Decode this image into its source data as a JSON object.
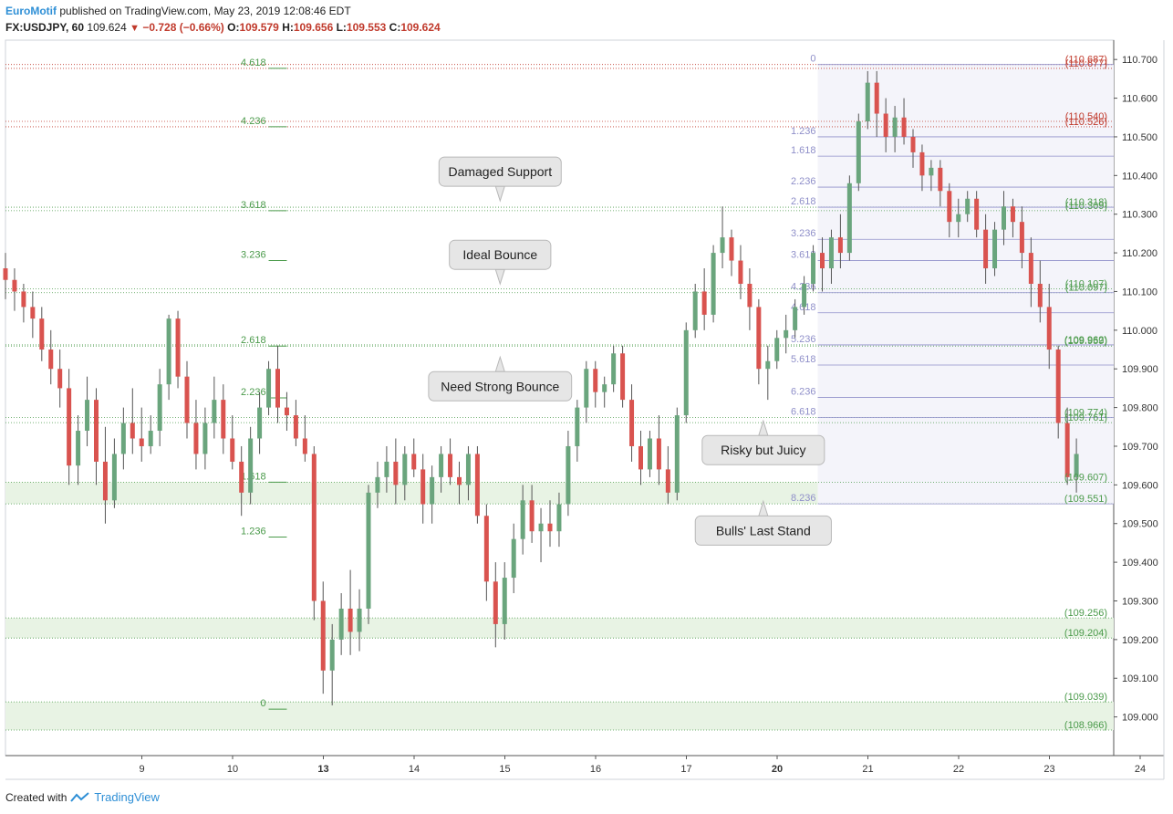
{
  "header": {
    "publisher": "EuroMotif",
    "published_text": "published on TradingView.com, May 23, 2019 12:08:46 EDT",
    "symbol": "FX:USDJPY, 60",
    "last": "109.624",
    "change": "−0.728 (−0.66%)",
    "o_label": "O:",
    "o_value": "109.579",
    "h_label": "H:",
    "h_value": "109.656",
    "l_label": "L:",
    "l_value": "109.553",
    "c_label": "C:",
    "c_value": "109.624"
  },
  "footer": {
    "created_with": "Created with",
    "brand": "TradingView"
  },
  "colors": {
    "up": "#6aa57d",
    "down": "#d9534f",
    "fib_left": "#4a9a4a",
    "fib_right": "#8f8fc9",
    "zone": "#e8f3e4",
    "res": "#c0392b",
    "sup": "#4a9a4a"
  },
  "chart_data": {
    "type": "candlestick",
    "symbol": "FX:USDJPY",
    "interval": "60",
    "ylim": [
      108.9,
      110.75
    ],
    "y_ticks": [
      "110.700",
      "110.600",
      "110.500",
      "110.400",
      "110.300",
      "110.200",
      "110.100",
      "110.000",
      "109.900",
      "109.800",
      "109.700",
      "109.600",
      "109.500",
      "109.400",
      "109.300",
      "109.200",
      "109.100",
      "109.000"
    ],
    "x_ticks": [
      {
        "label": "9",
        "day": 1,
        "bold": false
      },
      {
        "label": "10",
        "day": 2,
        "bold": false
      },
      {
        "label": "13",
        "day": 3,
        "bold": true
      },
      {
        "label": "14",
        "day": 4,
        "bold": false
      },
      {
        "label": "15",
        "day": 5,
        "bold": false
      },
      {
        "label": "16",
        "day": 6,
        "bold": false
      },
      {
        "label": "17",
        "day": 7,
        "bold": false
      },
      {
        "label": "20",
        "day": 8,
        "bold": true
      },
      {
        "label": "21",
        "day": 9,
        "bold": false
      },
      {
        "label": "22",
        "day": 10,
        "bold": false
      },
      {
        "label": "23",
        "day": 11,
        "bold": false
      },
      {
        "label": "24",
        "day": 12,
        "bold": false
      }
    ],
    "price_labels": [
      {
        "text": "(110.687)",
        "value": 110.687,
        "kind": "res"
      },
      {
        "text": "(110.677)",
        "value": 110.677,
        "kind": "res"
      },
      {
        "text": "(110.540)",
        "value": 110.54,
        "kind": "res"
      },
      {
        "text": "(110.526)",
        "value": 110.526,
        "kind": "res"
      },
      {
        "text": "(110.318)",
        "value": 110.318,
        "kind": "sup"
      },
      {
        "text": "(110.309)",
        "value": 110.309,
        "kind": "sup"
      },
      {
        "text": "(110.107)",
        "value": 110.107,
        "kind": "sup"
      },
      {
        "text": "(110.097)",
        "value": 110.097,
        "kind": "sup"
      },
      {
        "text": "(109.962)",
        "value": 109.962,
        "kind": "sup"
      },
      {
        "text": "(109.959)",
        "value": 109.959,
        "kind": "sup"
      },
      {
        "text": "(109.774)",
        "value": 109.774,
        "kind": "sup"
      },
      {
        "text": "(109.761)",
        "value": 109.761,
        "kind": "sup"
      },
      {
        "text": "(109.607)",
        "value": 109.607,
        "kind": "sup"
      },
      {
        "text": "(109.551)",
        "value": 109.551,
        "kind": "sup"
      },
      {
        "text": "(109.256)",
        "value": 109.256,
        "kind": "sup"
      },
      {
        "text": "(109.204)",
        "value": 109.204,
        "kind": "sup"
      },
      {
        "text": "(109.039)",
        "value": 109.039,
        "kind": "sup"
      },
      {
        "text": "(108.966)",
        "value": 108.966,
        "kind": "sup"
      }
    ],
    "zones": [
      [
        109.551,
        109.607
      ],
      [
        109.204,
        109.256
      ],
      [
        108.966,
        109.039
      ]
    ],
    "fib_left": [
      {
        "label": "4.618",
        "value": 110.677
      },
      {
        "label": "4.236",
        "value": 110.526
      },
      {
        "label": "3.618",
        "value": 110.309
      },
      {
        "label": "3.236",
        "value": 110.18
      },
      {
        "label": "2.618",
        "value": 109.959
      },
      {
        "label": "2.236",
        "value": 109.825
      },
      {
        "label": "1.618",
        "value": 109.607
      },
      {
        "label": "1.236",
        "value": 109.465
      },
      {
        "label": "0",
        "value": 109.02
      }
    ],
    "fib_right": [
      {
        "label": "0",
        "value": 110.687
      },
      {
        "label": "1.236",
        "value": 110.5
      },
      {
        "label": "1.618",
        "value": 110.45
      },
      {
        "label": "2.236",
        "value": 110.37
      },
      {
        "label": "2.618",
        "value": 110.318
      },
      {
        "label": "3.236",
        "value": 110.235
      },
      {
        "label": "3.618",
        "value": 110.18
      },
      {
        "label": "4.236",
        "value": 110.097
      },
      {
        "label": "4.618",
        "value": 110.045
      },
      {
        "label": "5.236",
        "value": 109.962
      },
      {
        "label": "5.618",
        "value": 109.91
      },
      {
        "label": "6.236",
        "value": 109.826
      },
      {
        "label": "6.618",
        "value": 109.774
      },
      {
        "label": "8.236",
        "value": 109.551
      }
    ],
    "annotations": [
      {
        "text": "Damaged Support",
        "day": 5.45,
        "value": 110.41,
        "pointer": "down"
      },
      {
        "text": "Ideal Bounce",
        "day": 5.45,
        "value": 110.195,
        "pointer": "down"
      },
      {
        "text": "Need Strong Bounce",
        "day": 5.45,
        "value": 109.855,
        "pointer": "up"
      },
      {
        "text": "Risky but Juicy",
        "day": 8.35,
        "value": 109.69,
        "pointer": "up"
      },
      {
        "text": "Bulls' Last Stand",
        "day": 8.35,
        "value": 109.482,
        "pointer": "up"
      }
    ],
    "candles": [
      [
        0.0,
        110.16,
        110.2,
        110.08,
        110.13
      ],
      [
        0.1,
        110.13,
        110.16,
        110.05,
        110.1
      ],
      [
        0.2,
        110.1,
        110.12,
        110.02,
        110.06
      ],
      [
        0.3,
        110.06,
        110.1,
        109.98,
        110.03
      ],
      [
        0.4,
        110.03,
        110.06,
        109.92,
        109.95
      ],
      [
        0.5,
        109.95,
        110.0,
        109.86,
        109.9
      ],
      [
        0.6,
        109.9,
        109.95,
        109.8,
        109.85
      ],
      [
        0.7,
        109.85,
        109.9,
        109.6,
        109.65
      ],
      [
        0.8,
        109.65,
        109.78,
        109.6,
        109.74
      ],
      [
        0.9,
        109.74,
        109.88,
        109.7,
        109.82
      ],
      [
        1.0,
        109.82,
        109.85,
        109.6,
        109.66
      ],
      [
        1.1,
        109.66,
        109.75,
        109.5,
        109.56
      ],
      [
        1.2,
        109.56,
        109.72,
        109.54,
        109.68
      ],
      [
        1.3,
        109.68,
        109.8,
        109.64,
        109.76
      ],
      [
        1.4,
        109.76,
        109.85,
        109.68,
        109.72
      ],
      [
        1.5,
        109.72,
        109.8,
        109.66,
        109.7
      ],
      [
        1.6,
        109.7,
        109.78,
        109.68,
        109.74
      ],
      [
        1.7,
        109.74,
        109.9,
        109.7,
        109.86
      ],
      [
        1.8,
        109.86,
        110.04,
        109.82,
        110.03
      ],
      [
        1.9,
        110.03,
        110.05,
        109.85,
        109.88
      ],
      [
        2.0,
        109.88,
        109.92,
        109.72,
        109.76
      ],
      [
        2.1,
        109.76,
        109.82,
        109.64,
        109.68
      ],
      [
        2.2,
        109.68,
        109.8,
        109.64,
        109.76
      ],
      [
        2.3,
        109.76,
        109.88,
        109.72,
        109.82
      ],
      [
        2.4,
        109.82,
        109.86,
        109.68,
        109.72
      ],
      [
        2.5,
        109.72,
        109.78,
        109.64,
        109.66
      ],
      [
        2.6,
        109.66,
        109.7,
        109.52,
        109.58
      ],
      [
        2.7,
        109.58,
        109.75,
        109.55,
        109.72
      ],
      [
        2.8,
        109.72,
        109.84,
        109.68,
        109.8
      ],
      [
        2.9,
        109.8,
        109.92,
        109.78,
        109.9
      ],
      [
        3.0,
        109.9,
        109.96,
        109.76,
        109.8
      ],
      [
        3.1,
        109.8,
        109.84,
        109.74,
        109.78
      ],
      [
        3.2,
        109.78,
        109.82,
        109.7,
        109.72
      ],
      [
        3.3,
        109.72,
        109.78,
        109.66,
        109.68
      ],
      [
        3.4,
        109.68,
        109.7,
        109.25,
        109.3
      ],
      [
        3.5,
        109.3,
        109.35,
        109.06,
        109.12
      ],
      [
        3.6,
        109.12,
        109.24,
        109.03,
        109.2
      ],
      [
        3.7,
        109.2,
        109.32,
        109.16,
        109.28
      ],
      [
        3.8,
        109.28,
        109.38,
        109.16,
        109.22
      ],
      [
        3.9,
        109.22,
        109.33,
        109.17,
        109.28
      ],
      [
        4.0,
        109.28,
        109.6,
        109.24,
        109.58
      ],
      [
        4.1,
        109.58,
        109.66,
        109.54,
        109.62
      ],
      [
        4.2,
        109.62,
        109.7,
        109.58,
        109.66
      ],
      [
        4.3,
        109.66,
        109.72,
        109.55,
        109.6
      ],
      [
        4.4,
        109.6,
        109.7,
        109.56,
        109.68
      ],
      [
        4.5,
        109.68,
        109.72,
        109.62,
        109.64
      ],
      [
        4.6,
        109.64,
        109.68,
        109.5,
        109.55
      ],
      [
        4.7,
        109.55,
        109.65,
        109.5,
        109.62
      ],
      [
        4.8,
        109.62,
        109.7,
        109.58,
        109.68
      ],
      [
        4.9,
        109.68,
        109.72,
        109.6,
        109.62
      ],
      [
        5.0,
        109.62,
        109.66,
        109.55,
        109.6
      ],
      [
        5.1,
        109.6,
        109.7,
        109.56,
        109.68
      ],
      [
        5.2,
        109.68,
        109.7,
        109.5,
        109.52
      ],
      [
        5.3,
        109.52,
        109.55,
        109.3,
        109.35
      ],
      [
        5.4,
        109.35,
        109.4,
        109.18,
        109.24
      ],
      [
        5.5,
        109.24,
        109.4,
        109.2,
        109.36
      ],
      [
        5.6,
        109.36,
        109.5,
        109.32,
        109.46
      ],
      [
        5.7,
        109.46,
        109.6,
        109.42,
        109.56
      ],
      [
        5.8,
        109.56,
        109.6,
        109.45,
        109.48
      ],
      [
        5.9,
        109.48,
        109.54,
        109.4,
        109.5
      ],
      [
        6.0,
        109.5,
        109.56,
        109.44,
        109.48
      ],
      [
        6.1,
        109.48,
        109.58,
        109.44,
        109.55
      ],
      [
        6.2,
        109.55,
        109.74,
        109.52,
        109.7
      ],
      [
        6.3,
        109.7,
        109.82,
        109.66,
        109.8
      ],
      [
        6.4,
        109.8,
        109.92,
        109.76,
        109.9
      ],
      [
        6.5,
        109.9,
        109.92,
        109.8,
        109.84
      ],
      [
        6.6,
        109.84,
        109.88,
        109.8,
        109.86
      ],
      [
        6.7,
        109.86,
        109.96,
        109.84,
        109.94
      ],
      [
        6.8,
        109.94,
        109.96,
        109.8,
        109.82
      ],
      [
        6.9,
        109.82,
        109.86,
        109.66,
        109.7
      ],
      [
        7.0,
        109.7,
        109.74,
        109.6,
        109.64
      ],
      [
        7.1,
        109.64,
        109.74,
        109.62,
        109.72
      ],
      [
        7.2,
        109.72,
        109.78,
        109.6,
        109.64
      ],
      [
        7.3,
        109.64,
        109.7,
        109.55,
        109.58
      ],
      [
        7.4,
        109.58,
        109.8,
        109.56,
        109.78
      ],
      [
        7.5,
        109.78,
        110.02,
        109.76,
        110.0
      ],
      [
        7.6,
        110.0,
        110.12,
        109.98,
        110.1
      ],
      [
        7.7,
        110.1,
        110.16,
        110.0,
        110.04
      ],
      [
        7.8,
        110.04,
        110.22,
        110.02,
        110.2
      ],
      [
        7.9,
        110.2,
        110.32,
        110.16,
        110.24
      ],
      [
        8.0,
        110.24,
        110.26,
        110.14,
        110.18
      ],
      [
        8.1,
        110.18,
        110.22,
        110.08,
        110.12
      ],
      [
        8.2,
        110.12,
        110.16,
        110.0,
        110.06
      ],
      [
        8.3,
        110.06,
        110.08,
        109.86,
        109.9
      ],
      [
        8.4,
        109.9,
        109.96,
        109.82,
        109.92
      ],
      [
        8.5,
        109.92,
        110.0,
        109.9,
        109.98
      ],
      [
        8.6,
        109.98,
        110.04,
        109.94,
        110.0
      ],
      [
        8.7,
        110.0,
        110.08,
        109.98,
        110.06
      ],
      [
        8.8,
        110.06,
        110.14,
        110.04,
        110.12
      ],
      [
        8.9,
        110.12,
        110.22,
        110.1,
        110.2
      ],
      [
        9.0,
        110.2,
        110.24,
        110.1,
        110.16
      ],
      [
        9.1,
        110.16,
        110.26,
        110.12,
        110.24
      ],
      [
        9.2,
        110.24,
        110.3,
        110.16,
        110.2
      ],
      [
        9.3,
        110.2,
        110.4,
        110.18,
        110.38
      ],
      [
        9.4,
        110.38,
        110.56,
        110.36,
        110.54
      ],
      [
        9.5,
        110.54,
        110.67,
        110.52,
        110.64
      ],
      [
        9.6,
        110.64,
        110.67,
        110.5,
        110.56
      ],
      [
        9.7,
        110.56,
        110.6,
        110.46,
        110.5
      ],
      [
        9.8,
        110.5,
        110.58,
        110.46,
        110.55
      ],
      [
        9.9,
        110.55,
        110.6,
        110.48,
        110.5
      ],
      [
        10.0,
        110.5,
        110.52,
        110.42,
        110.46
      ],
      [
        10.1,
        110.46,
        110.48,
        110.36,
        110.4
      ],
      [
        10.2,
        110.4,
        110.44,
        110.36,
        110.42
      ],
      [
        10.3,
        110.42,
        110.44,
        110.32,
        110.36
      ],
      [
        10.4,
        110.36,
        110.38,
        110.24,
        110.28
      ],
      [
        10.5,
        110.28,
        110.34,
        110.24,
        110.3
      ],
      [
        10.6,
        110.3,
        110.36,
        110.28,
        110.34
      ],
      [
        10.7,
        110.34,
        110.36,
        110.24,
        110.26
      ],
      [
        10.8,
        110.26,
        110.3,
        110.12,
        110.16
      ],
      [
        10.9,
        110.16,
        110.28,
        110.14,
        110.26
      ],
      [
        11.0,
        110.26,
        110.36,
        110.22,
        110.32
      ],
      [
        11.1,
        110.32,
        110.34,
        110.24,
        110.28
      ],
      [
        11.2,
        110.28,
        110.32,
        110.16,
        110.2
      ],
      [
        11.3,
        110.2,
        110.24,
        110.06,
        110.12
      ],
      [
        11.4,
        110.12,
        110.18,
        110.02,
        110.06
      ],
      [
        11.5,
        110.06,
        110.12,
        109.9,
        109.95
      ],
      [
        11.6,
        109.95,
        109.96,
        109.72,
        109.76
      ],
      [
        11.7,
        109.76,
        109.8,
        109.6,
        109.62
      ],
      [
        11.8,
        109.62,
        109.72,
        109.58,
        109.68
      ]
    ]
  }
}
